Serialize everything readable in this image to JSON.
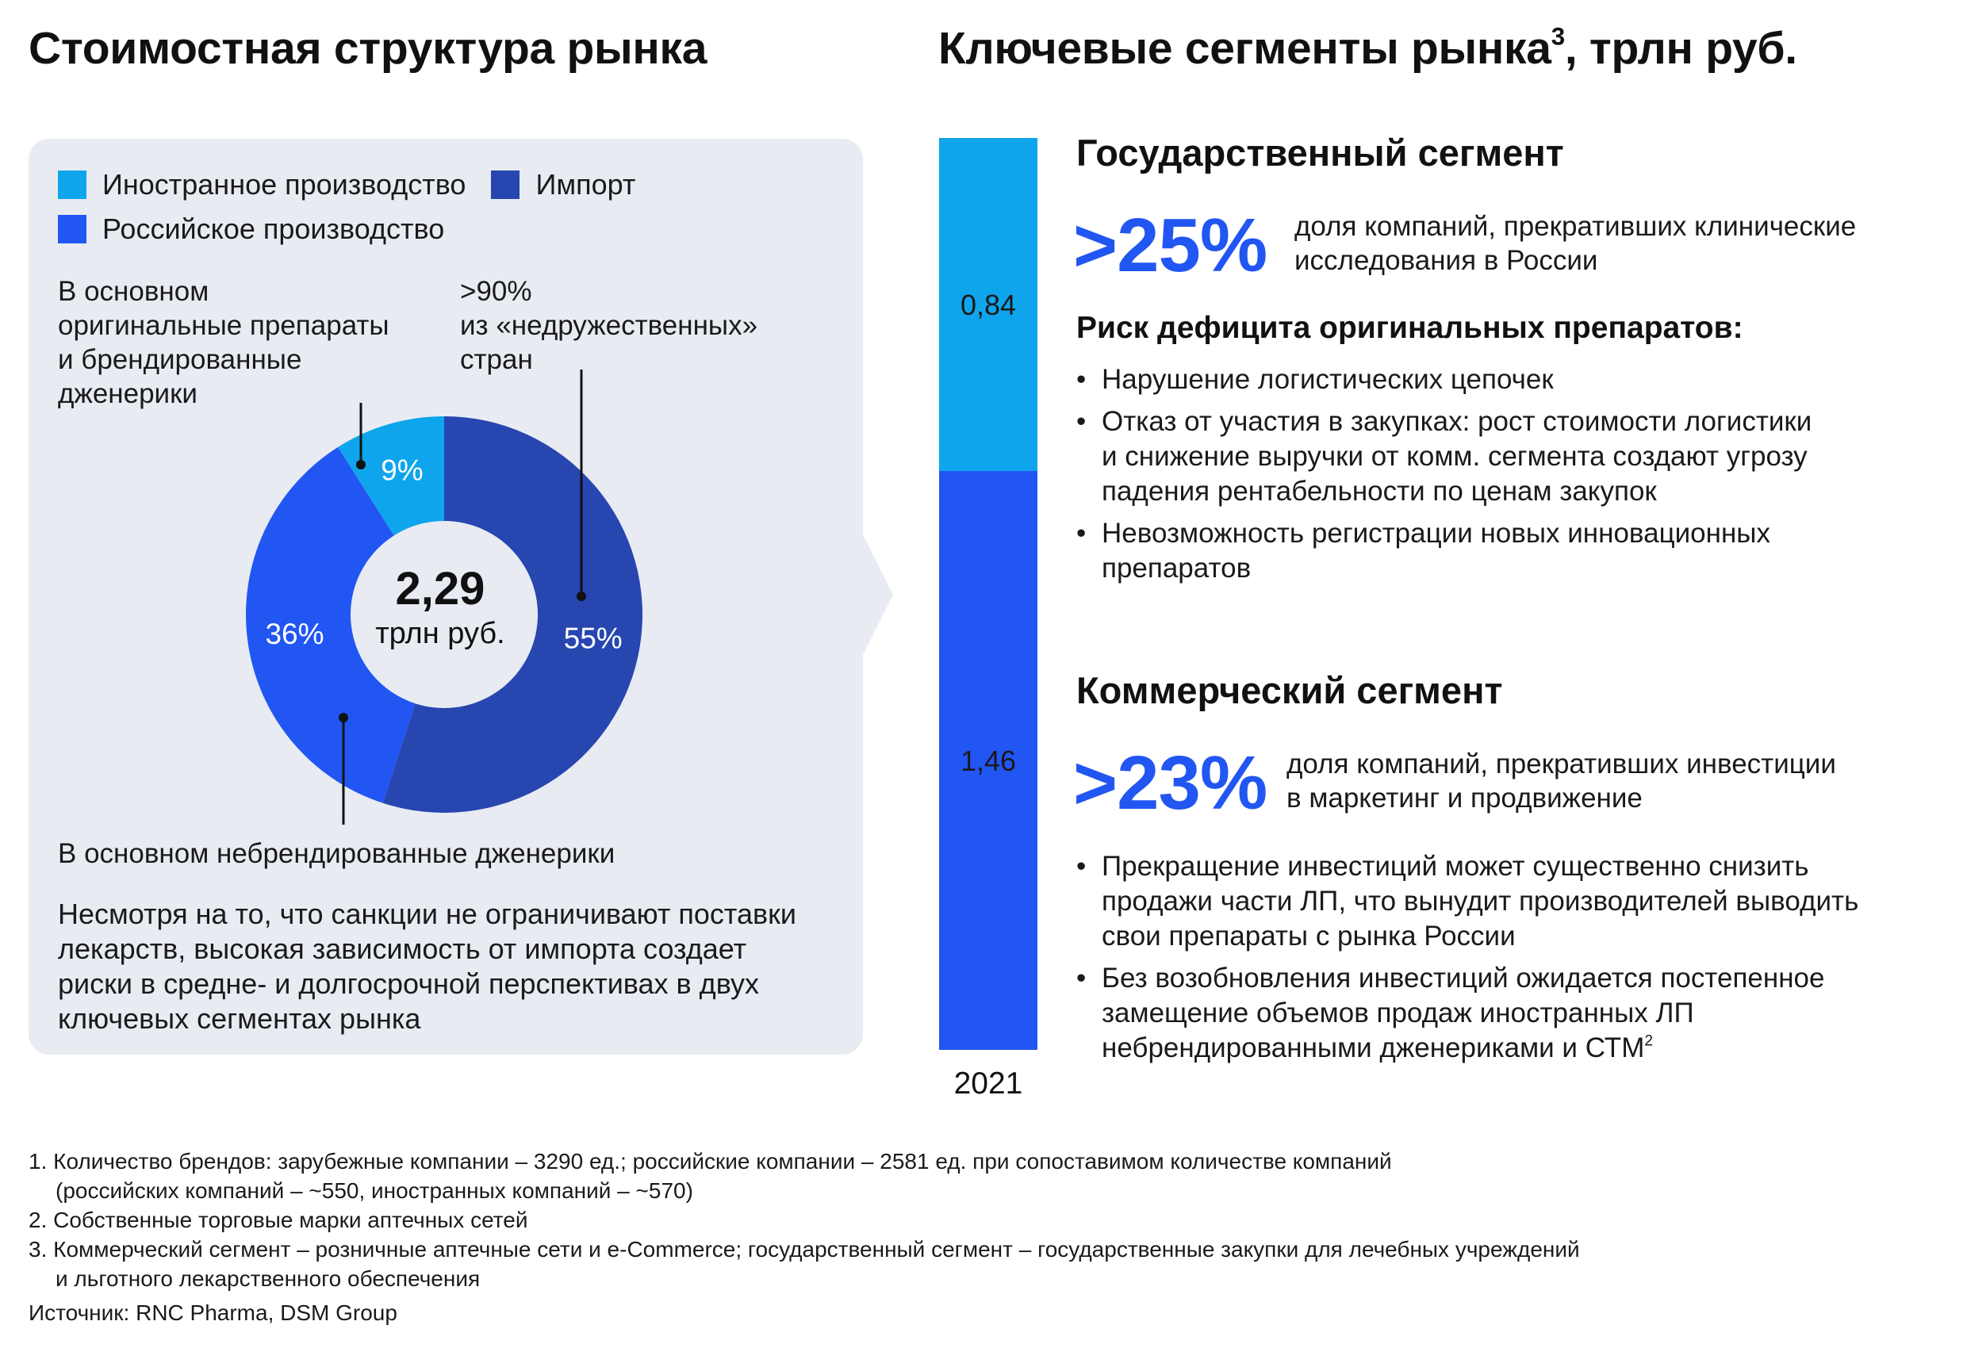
{
  "left_title": "Стоимостная структура рынка",
  "right_title_main": "Ключевые сегменты рынка",
  "right_title_sup": "3",
  "right_title_tail": ", трлн руб.",
  "legend": [
    {
      "label": "Иностранное производство",
      "color": "#0ea5ec"
    },
    {
      "label": "Импорт",
      "color": "#2746b0"
    },
    {
      "label": "Российское производство",
      "color": "#2256f2"
    }
  ],
  "annotations": {
    "foreign": [
      "В основном",
      "оригинальные препараты",
      "и брендированные",
      "дженерики"
    ],
    "import": [
      ">90%",
      "из «недружественных»",
      "стран"
    ],
    "russian": "В основном небрендированные дженерики"
  },
  "donut_center": {
    "value": "2,29",
    "unit": "трлн руб."
  },
  "summary_text": [
    "Несмотря на то, что санкции не ограничивают поставки",
    "лекарств, высокая зависимость от импорта создает",
    "риски в средне- и долгосрочной перспективах в двух",
    "ключевых сегментах рынка"
  ],
  "gov": {
    "title": "Государственный сегмент",
    "big": ">25%",
    "big_desc": [
      "доля компаний, прекративших клинические",
      "исследования в России"
    ],
    "risk_title": "Риск дефицита оригинальных препаратов:",
    "bullets": [
      [
        "Нарушение логистических цепочек"
      ],
      [
        "Отказ от участия в закупках: рост стоимости логистики",
        "и снижение выручки от комм. сегмента создают угрозу",
        "падения рентабельности по ценам закупок"
      ],
      [
        "Невозможность регистрации новых инновационных",
        "препаратов"
      ]
    ]
  },
  "com": {
    "title": "Коммерческий сегмент",
    "big": ">23%",
    "big_desc": [
      "доля компаний, прекративших инвестиции",
      "в маркетинг и продвижение"
    ],
    "bullets": [
      [
        "Прекращение инвестиций может существенно снизить",
        "продажи части ЛП, что вынудит производителей выводить",
        "свои препараты с рынка России"
      ],
      [
        "Без возобновления инвестиций ожидается постепенное",
        "замещение объемов продаж иностранных ЛП",
        "небрендированными дженериками и СТМ"
      ]
    ],
    "last_sup": "2"
  },
  "footnotes": [
    [
      "1. Количество брендов: зарубежные компании – 3290 ед.; российские компании – 2581 ед. при сопоставимом количестве компаний",
      "(российских компаний – ~550, иностранных компаний – ~570)"
    ],
    [
      "2. Собственные торговые марки аптечных сетей"
    ],
    [
      "3. Коммерческий сегмент – розничные аптечные сети и e-Commerce; государственный сегмент – государственные закупки для лечебных учреждений",
      "и льготного лекарственного обеспечения"
    ]
  ],
  "source": "Источник: RNC Pharma, DSM Group",
  "chart_data": [
    {
      "type": "pie",
      "categories": [
        "Импорт",
        "Российское производство",
        "Иностранное производство"
      ],
      "values": [
        55,
        36,
        9
      ],
      "labels": [
        "55%",
        "36%",
        "9%"
      ],
      "colors": [
        "#2746b0",
        "#2256f2",
        "#0ea5ec"
      ],
      "donut": true,
      "total": "2,29 трлн руб."
    },
    {
      "type": "bar",
      "stacked": true,
      "categories": [
        "2021"
      ],
      "series": [
        {
          "name": "Коммерческий сегмент",
          "values": [
            1.46
          ],
          "label": "1,46",
          "color": "#2256f2"
        },
        {
          "name": "Государственный сегмент",
          "values": [
            0.84
          ],
          "label": "0,84",
          "color": "#0ea5ec"
        }
      ]
    }
  ]
}
